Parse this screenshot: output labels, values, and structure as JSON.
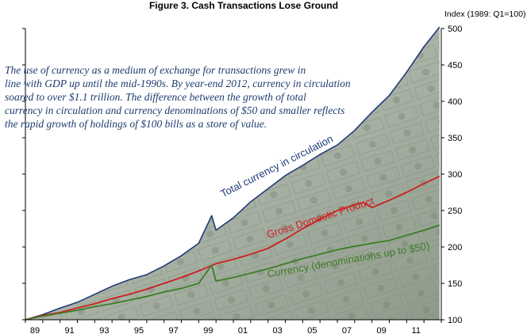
{
  "chart_data": {
    "type": "line",
    "title": "Figure 3. Cash Transactions Lose Ground",
    "ylabel": "Index (1989: Q1=100)",
    "xlabel": "",
    "xlim": [
      1989,
      2013
    ],
    "ylim": [
      100,
      500
    ],
    "y_ticks": [
      100,
      150,
      200,
      250,
      300,
      350,
      400,
      450,
      500
    ],
    "x_ticks": [
      {
        "value": 1989,
        "label": "89"
      },
      {
        "value": 1991,
        "label": "91"
      },
      {
        "value": 1993,
        "label": "93"
      },
      {
        "value": 1995,
        "label": "95"
      },
      {
        "value": 1997,
        "label": "97"
      },
      {
        "value": 1999,
        "label": "99"
      },
      {
        "value": 2001,
        "label": "01"
      },
      {
        "value": 2003,
        "label": "03"
      },
      {
        "value": 2005,
        "label": "05"
      },
      {
        "value": 2007,
        "label": "07"
      },
      {
        "value": 2009,
        "label": "09"
      },
      {
        "value": 2011,
        "label": "11"
      }
    ],
    "grid": false,
    "annotation": "The use of currency as a medium of exchange for transactions grew in line with GDP up until the mid-1990s. By year-end 2012, currency in circulation soared to over $1.1 trillion. The difference between the growth of total currency in circulation and currency denominations of $50 and smaller reflects the rapid growth of holdings of $100 bills as a store of value.",
    "series": [
      {
        "name": "Total currency in circulation",
        "color": "#1f3a7a",
        "x": [
          1989,
          1990,
          1991,
          1992,
          1993,
          1994,
          1995,
          1996,
          1997,
          1998,
          1999,
          1999.75,
          2000,
          2001,
          2002,
          2003,
          2004,
          2005,
          2006,
          2007,
          2008,
          2009,
          2010,
          2011,
          2012,
          2012.9
        ],
        "y": [
          100,
          107,
          116,
          124,
          135,
          146,
          155,
          162,
          174,
          188,
          205,
          243,
          223,
          240,
          262,
          280,
          298,
          312,
          327,
          340,
          360,
          385,
          408,
          440,
          475,
          502
        ]
      },
      {
        "name": "Gross Domestic Product",
        "color": "#cc1f1f",
        "x": [
          1989,
          1990,
          1991,
          1992,
          1993,
          1994,
          1995,
          1996,
          1997,
          1998,
          1999,
          2000,
          2001,
          2002,
          2003,
          2004,
          2005,
          2006,
          2007,
          2008,
          2008.5,
          2009,
          2010,
          2011,
          2012,
          2012.9
        ],
        "y": [
          100,
          106,
          110,
          116,
          122,
          129,
          135,
          142,
          150,
          158,
          167,
          177,
          183,
          190,
          198,
          211,
          225,
          238,
          250,
          258,
          261,
          254,
          264,
          275,
          287,
          297
        ]
      },
      {
        "name": "Currency (denominations up to $50)",
        "color": "#3c7d26",
        "x": [
          1989,
          1990,
          1991,
          1992,
          1993,
          1994,
          1995,
          1996,
          1997,
          1998,
          1999,
          1999.75,
          2000,
          2001,
          2002,
          2003,
          2004,
          2005,
          2006,
          2007,
          2008,
          2009,
          2010,
          2011,
          2012,
          2012.9
        ],
        "y": [
          100,
          105,
          109,
          113,
          118,
          122,
          127,
          132,
          138,
          143,
          150,
          175,
          153,
          158,
          164,
          170,
          177,
          184,
          190,
          196,
          201,
          205,
          209,
          216,
          223,
          230
        ]
      }
    ]
  }
}
